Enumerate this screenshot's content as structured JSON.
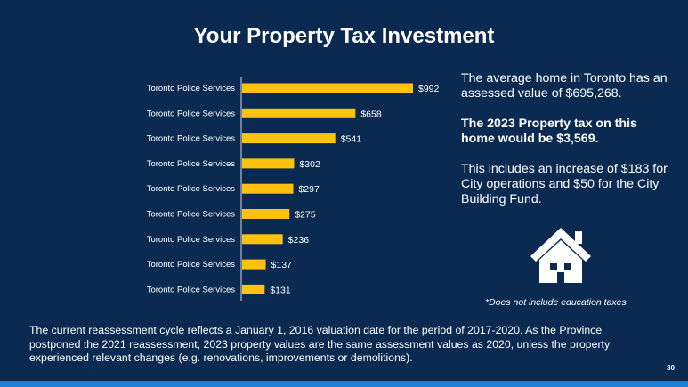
{
  "slide": {
    "title": "Your Property Tax Investment",
    "page_number": "30"
  },
  "side_text": {
    "p1": "The average home in Toronto has an assessed value of $695,268.",
    "p2": "The 2023 Property tax on this home would be $3,569.",
    "p3": "This includes an increase of $183 for City operations and $50 for the City Building Fund.",
    "note": "*Does not include education taxes"
  },
  "footer": {
    "text": "The current reassessment cycle reflects a January 1, 2016 valuation date for the period of 2017-2020. As the Province postponed the 2021 reassessment, 2023 property values are the same assessment values as 2020, unless the property experienced relevant changes (e.g. renovations, improvements or demolitions)."
  },
  "icons": {
    "house": "house-icon"
  },
  "colors": {
    "background": "#0b2a52",
    "bar": "#ffc20e",
    "bottom_bar": "#1e7fd6"
  },
  "chart_data": {
    "type": "bar",
    "orientation": "horizontal",
    "title": "",
    "xlabel": "",
    "ylabel": "",
    "categories": [
      "Toronto Police Services",
      "Toronto Police Services",
      "Toronto Police Services",
      "Toronto Police Services",
      "Toronto Police Services",
      "Toronto Police Services",
      "Toronto Police Services",
      "Toronto Police Services",
      "Toronto Police Services"
    ],
    "values": [
      992,
      658,
      541,
      302,
      297,
      275,
      236,
      137,
      131
    ],
    "data_labels": [
      "$992",
      "$658",
      "$541",
      "$302",
      "$297",
      "$275",
      "$236",
      "$137",
      "$131"
    ],
    "xlim": [
      0,
      992
    ],
    "grid": false,
    "legend": "none"
  }
}
